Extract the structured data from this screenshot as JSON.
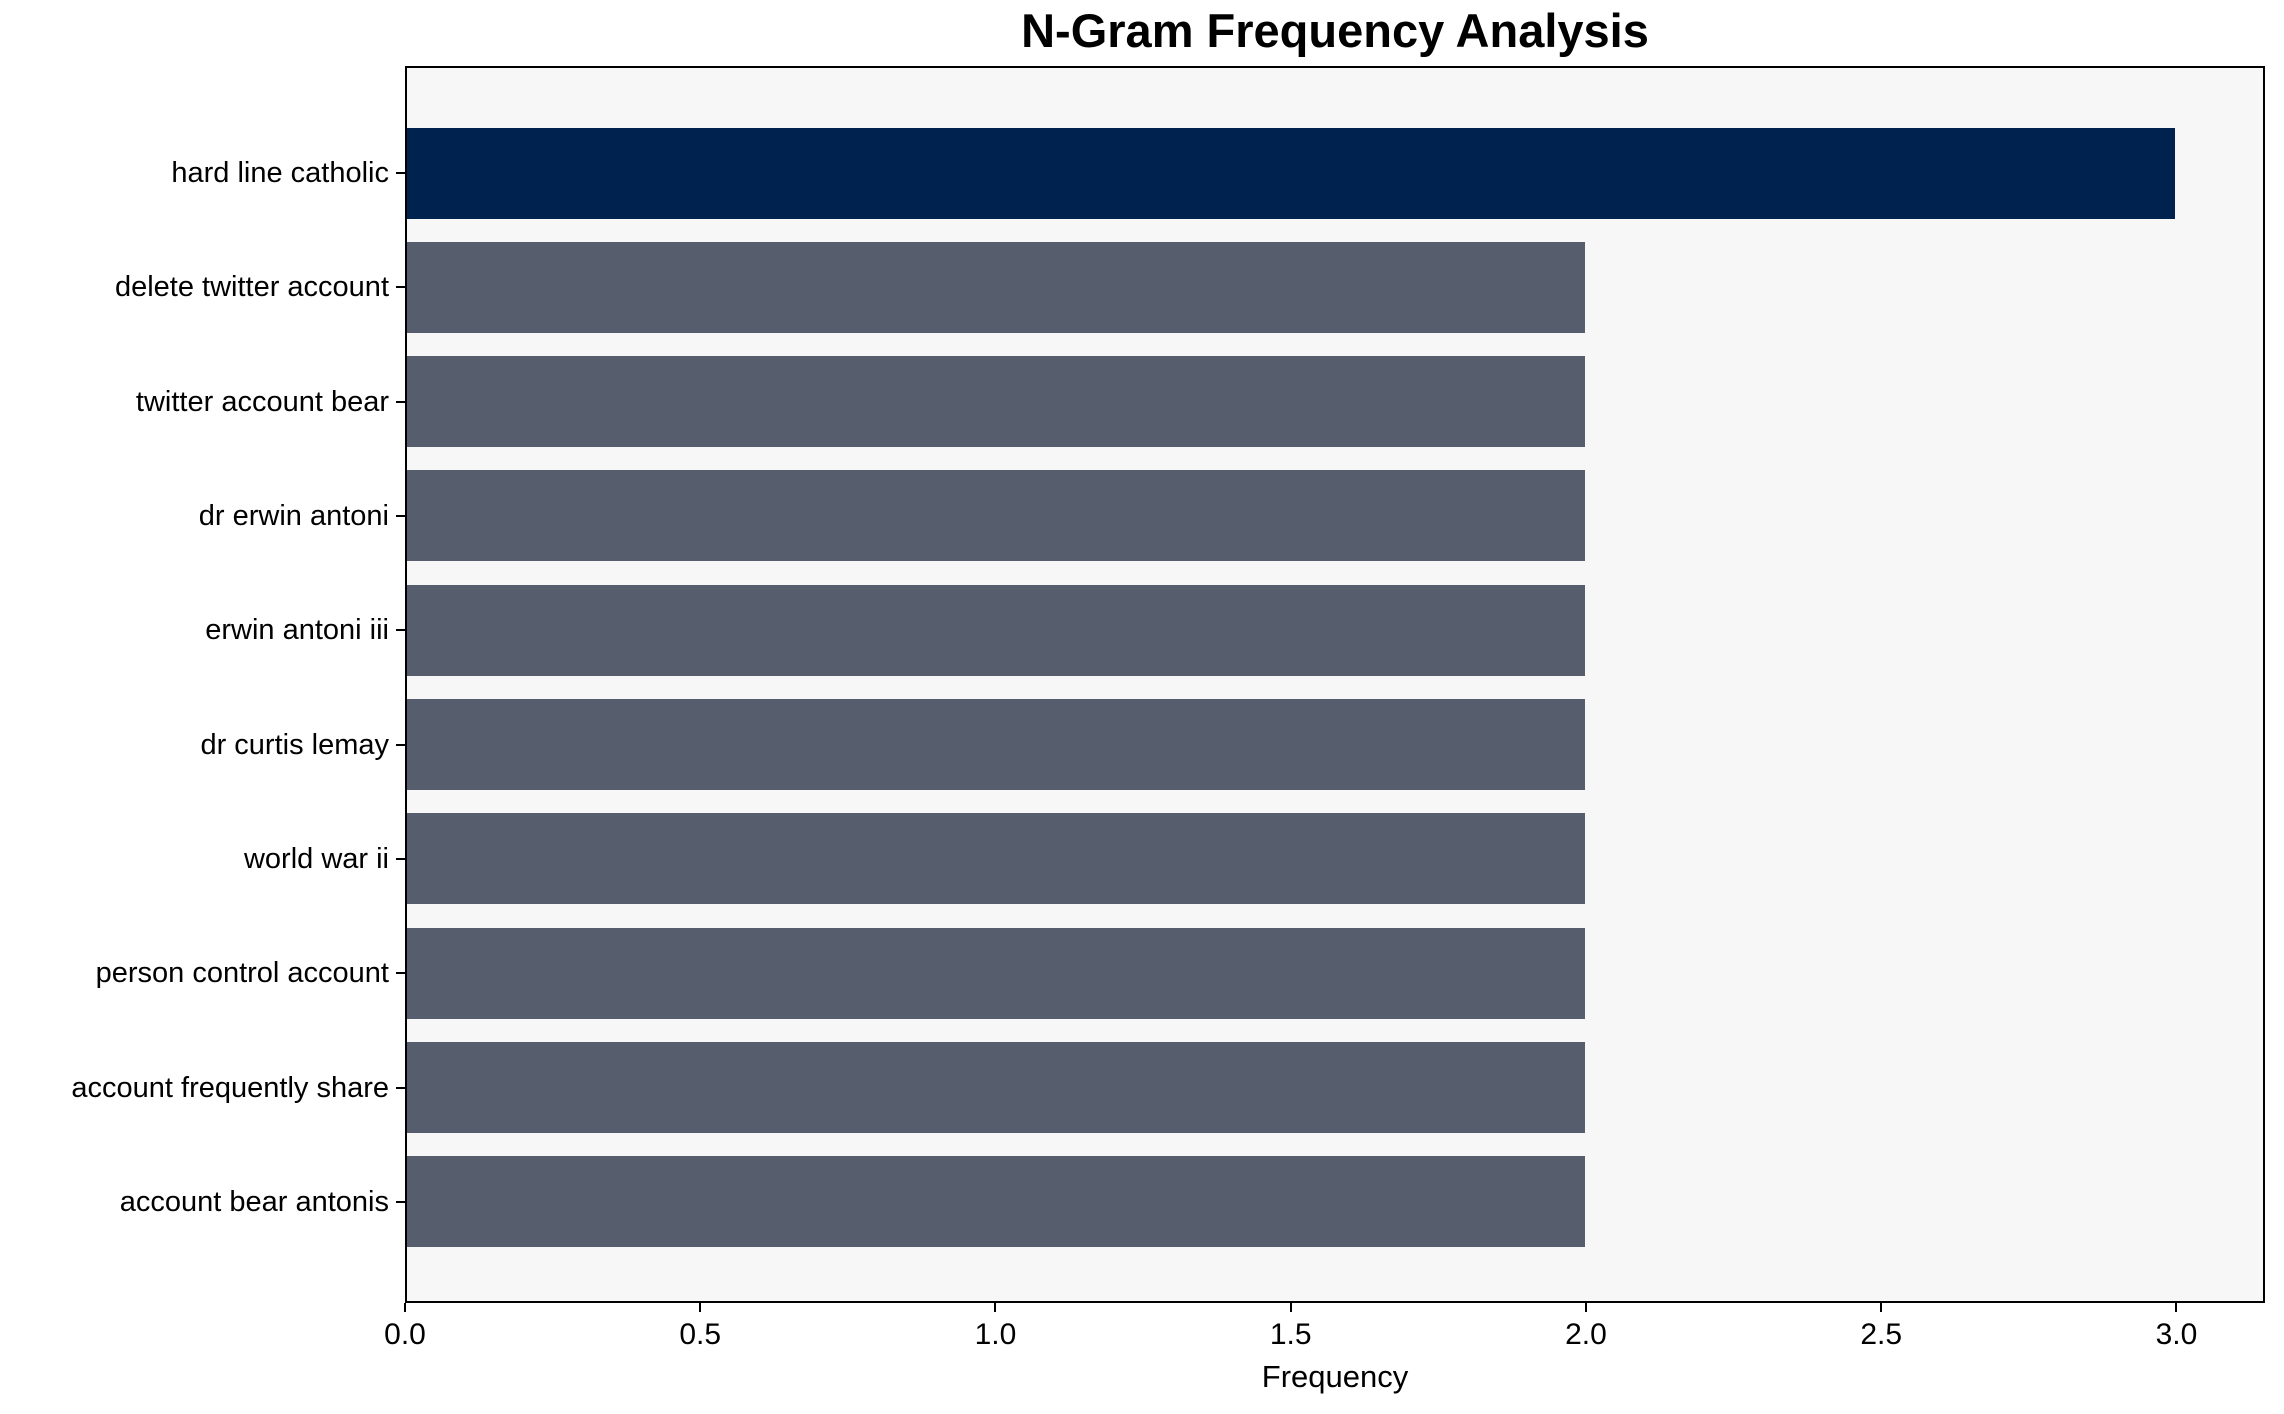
{
  "chart_data": {
    "type": "bar",
    "orientation": "horizontal",
    "title": "N-Gram Frequency Analysis",
    "xlabel": "Frequency",
    "ylabel": "",
    "categories": [
      "hard line catholic",
      "delete twitter account",
      "twitter account bear",
      "dr erwin antoni",
      "erwin antoni iii",
      "dr curtis lemay",
      "world war ii",
      "person control account",
      "account frequently share",
      "account bear antonis"
    ],
    "values": [
      3,
      2,
      2,
      2,
      2,
      2,
      2,
      2,
      2,
      2
    ],
    "xlim": [
      0,
      3.15
    ],
    "xticks": [
      0,
      0.5,
      1.0,
      1.5,
      2.0,
      2.5,
      3.0
    ],
    "xtick_labels": [
      "0.0",
      "0.5",
      "1.0",
      "1.5",
      "2.0",
      "2.5",
      "3.0"
    ],
    "bar_colors": [
      "#00224E",
      "#565D6D",
      "#565D6D",
      "#565D6D",
      "#565D6D",
      "#565D6D",
      "#565D6D",
      "#565D6D",
      "#565D6D",
      "#565D6D"
    ],
    "grid": false,
    "legend": null,
    "colors": {
      "highlight": "#00224E",
      "base": "#565D6D",
      "plot_background": "#F7F7F8",
      "spine": "#000000"
    }
  }
}
